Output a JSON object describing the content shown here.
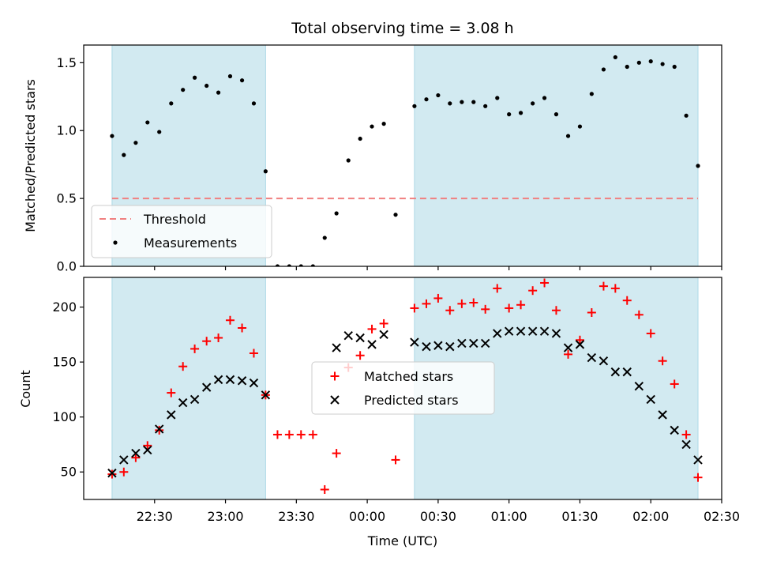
{
  "chart_data": {
    "title": "Total observing time = 3.08 h",
    "xlabel": "Time (UTC)",
    "x_ticks": [
      "22:30",
      "23:00",
      "23:30",
      "00:00",
      "00:30",
      "01:00",
      "01:30",
      "02:00",
      "02:30"
    ],
    "x_tick_values": [
      22.5,
      23.0,
      23.5,
      24.0,
      24.5,
      25.0,
      25.5,
      26.0,
      26.5
    ],
    "xlim": [
      22.0,
      26.5
    ],
    "x_unit_note": "hours UTC",
    "shaded_intervals": [
      [
        22.2,
        23.283
      ],
      [
        24.333,
        26.333
      ]
    ],
    "shade_color": "#add8e6",
    "panels": [
      {
        "type": "scatter",
        "ylabel": "Matched/Predicted stars",
        "ylim": [
          0.0,
          1.63
        ],
        "y_ticks": [
          "0.0",
          "0.5",
          "1.0",
          "1.5"
        ],
        "y_tick_values": [
          0.0,
          0.5,
          1.0,
          1.5
        ],
        "threshold": {
          "name": "Threshold",
          "value": 0.5,
          "x_range": [
            22.2,
            26.333
          ],
          "color": "#f08080"
        },
        "legend_position": "lower-left",
        "series": [
          {
            "name": "Measurements",
            "color": "#000000",
            "marker": "dot",
            "x": [
              22.2,
              22.283,
              22.367,
              22.45,
              22.533,
              22.617,
              22.7,
              22.783,
              22.867,
              22.95,
              23.033,
              23.117,
              23.2,
              23.283,
              23.367,
              23.45,
              23.533,
              23.617,
              23.7,
              23.783,
              23.867,
              23.95,
              24.033,
              24.117,
              24.2,
              24.333,
              24.417,
              24.5,
              24.583,
              24.667,
              24.75,
              24.833,
              24.917,
              25.0,
              25.083,
              25.167,
              25.25,
              25.333,
              25.417,
              25.5,
              25.583,
              25.667,
              25.75,
              25.833,
              25.917,
              26.0,
              26.083,
              26.167,
              26.25,
              26.333
            ],
            "y": [
              0.96,
              0.82,
              0.91,
              1.06,
              0.99,
              1.2,
              1.3,
              1.39,
              1.33,
              1.28,
              1.4,
              1.37,
              1.2,
              0.7,
              0.0,
              0.0,
              0.0,
              0.0,
              0.21,
              0.39,
              0.78,
              0.94,
              1.03,
              1.05,
              0.38,
              1.18,
              1.23,
              1.26,
              1.2,
              1.21,
              1.21,
              1.18,
              1.24,
              1.12,
              1.13,
              1.2,
              1.24,
              1.12,
              0.96,
              1.03,
              1.27,
              1.45,
              1.54,
              1.47,
              1.5,
              1.51,
              1.49,
              1.47,
              1.11,
              0.74
            ]
          }
        ]
      },
      {
        "type": "scatter",
        "ylabel": "Count",
        "ylim": [
          25,
          227
        ],
        "y_ticks": [
          "50",
          "100",
          "150",
          "200"
        ],
        "y_tick_values": [
          50,
          100,
          150,
          200
        ],
        "legend_position": "center",
        "series": [
          {
            "name": "Matched stars",
            "color": "#ff0000",
            "marker": "plus",
            "x": [
              22.2,
              22.283,
              22.367,
              22.45,
              22.533,
              22.617,
              22.7,
              22.783,
              22.867,
              22.95,
              23.033,
              23.117,
              23.2,
              23.283,
              23.367,
              23.45,
              23.533,
              23.617,
              23.7,
              23.783,
              23.867,
              23.95,
              24.033,
              24.117,
              24.2,
              24.333,
              24.417,
              24.5,
              24.583,
              24.667,
              24.75,
              24.833,
              24.917,
              25.0,
              25.083,
              25.167,
              25.25,
              25.333,
              25.417,
              25.5,
              25.583,
              25.667,
              25.75,
              25.833,
              25.917,
              26.0,
              26.083,
              26.167,
              26.25,
              26.333
            ],
            "y": [
              48,
              50,
              63,
              74,
              88,
              122,
              146,
              162,
              169,
              172,
              188,
              181,
              158,
              120,
              84,
              84,
              84,
              84,
              34,
              67,
              145,
              156,
              180,
              185,
              61,
              199,
              203,
              208,
              197,
              203,
              204,
              198,
              217,
              199,
              202,
              215,
              222,
              197,
              157,
              170,
              195,
              219,
              217,
              206,
              193,
              176,
              151,
              130,
              84,
              45
            ]
          },
          {
            "name": "Predicted stars",
            "color": "#000000",
            "marker": "x",
            "x": [
              22.2,
              22.283,
              22.367,
              22.45,
              22.533,
              22.617,
              22.7,
              22.783,
              22.867,
              22.95,
              23.033,
              23.117,
              23.2,
              23.283,
              23.783,
              23.867,
              23.95,
              24.033,
              24.117,
              24.333,
              24.417,
              24.5,
              24.583,
              24.667,
              24.75,
              24.833,
              24.917,
              25.0,
              25.083,
              25.167,
              25.25,
              25.333,
              25.417,
              25.5,
              25.583,
              25.667,
              25.75,
              25.833,
              25.917,
              26.0,
              26.083,
              26.167,
              26.25,
              26.333
            ],
            "y": [
              49,
              61,
              67,
              70,
              89,
              102,
              113,
              116,
              127,
              134,
              134,
              133,
              131,
              120,
              163,
              174,
              172,
              166,
              175,
              168,
              164,
              165,
              164,
              167,
              167,
              167,
              176,
              178,
              178,
              178,
              178,
              176,
              163,
              166,
              154,
              151,
              141,
              141,
              128,
              116,
              102,
              88,
              75,
              61
            ]
          }
        ]
      }
    ]
  }
}
